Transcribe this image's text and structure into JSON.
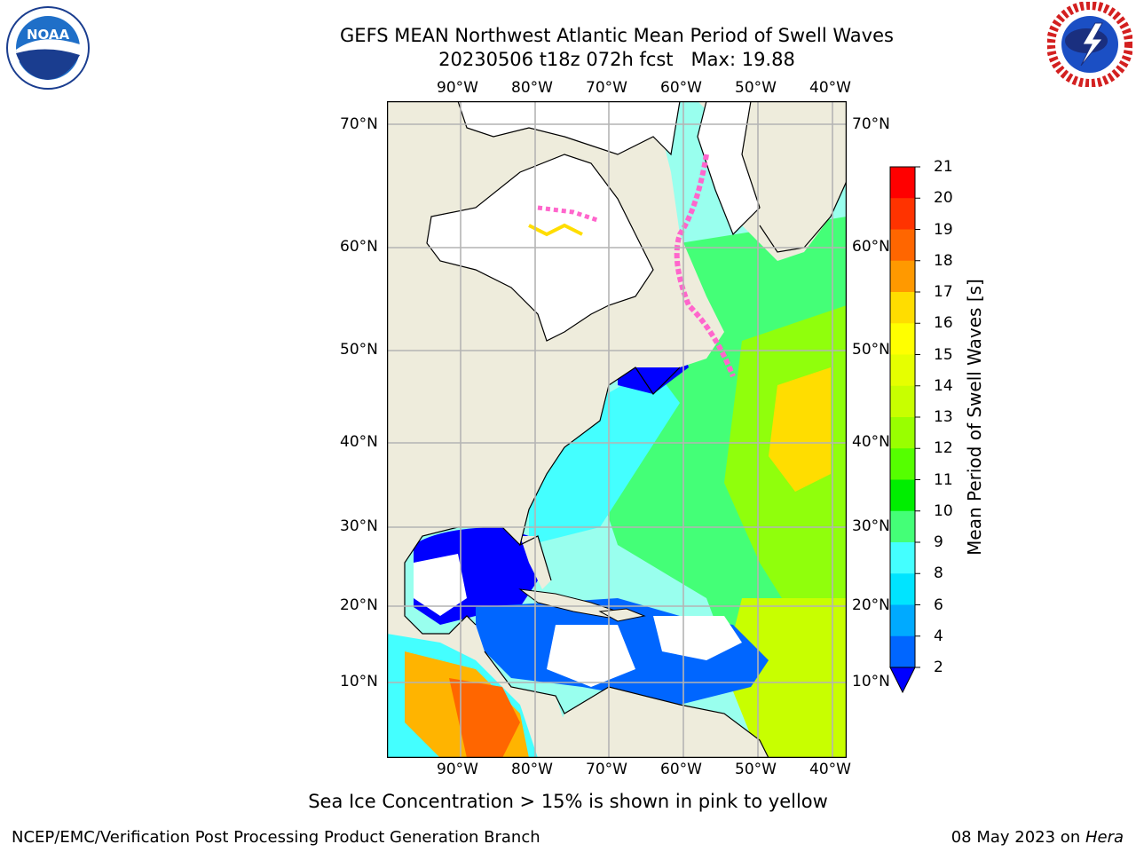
{
  "title": {
    "line1": "GEFS MEAN Northwest Atlantic Mean Period of Swell Waves",
    "run": "20230506 t18z 072h fcst",
    "max": "Max: 19.88"
  },
  "map": {
    "lon_labels": [
      "90°W",
      "80°W",
      "70°W",
      "60°W",
      "50°W",
      "40°W"
    ],
    "lat_labels": [
      "70°N",
      "60°N",
      "50°N",
      "40°N",
      "30°N",
      "20°N",
      "10°N"
    ],
    "colors": {
      "land": "#eeecdc",
      "ice_land": "#ffffff",
      "grid": "#b4b4b4",
      "coast": "#000000"
    }
  },
  "colorbar": {
    "label": "Mean Period of Swell Waves [s]",
    "ticks": [
      "21",
      "20",
      "19",
      "18",
      "17",
      "16",
      "15",
      "14",
      "13",
      "12",
      "11",
      "10",
      "9",
      "8",
      "6",
      "4",
      "2"
    ],
    "colors": [
      "#ff0000",
      "#ff3300",
      "#ff6600",
      "#ff9900",
      "#ffb400",
      "#ffdd00",
      "#ffff00",
      "#e6ff00",
      "#c8ff00",
      "#99ff00",
      "#55ff00",
      "#00ee00",
      "#44ff77",
      "#99ffee",
      "#44ffff",
      "#00e4ff",
      "#00aaff",
      "#0066ff",
      "#0000ff"
    ]
  },
  "note": "Sea Ice Concentration > 15% is shown in pink to yellow",
  "footer": {
    "left": "NCEP/EMC/Verification Post Processing Product Generation Branch",
    "date": "08 May 2023 on ",
    "host": "Hera"
  },
  "logos": {
    "left": "noaa-logo",
    "right": "nws-logo"
  }
}
